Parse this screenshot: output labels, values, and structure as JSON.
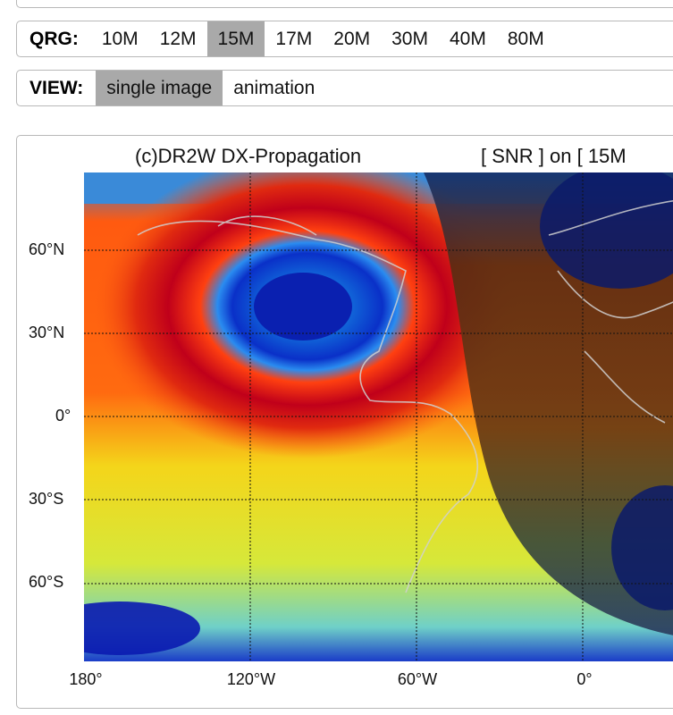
{
  "qrg": {
    "label": "QRG:",
    "bands": [
      "10M",
      "12M",
      "15M",
      "17M",
      "20M",
      "30M",
      "40M",
      "80M"
    ],
    "selected": "15M"
  },
  "view": {
    "label": "VIEW:",
    "options": [
      "single image",
      "animation"
    ],
    "selected": "single image"
  },
  "map": {
    "title_left": "(c)DR2W DX-Propagation",
    "title_right": "[ SNR ] on [ 15M",
    "lat_labels": [
      "60°N",
      "30°N",
      "0°",
      "30°S",
      "60°S"
    ],
    "lon_labels": [
      "180°",
      "120°W",
      "60°W",
      "0°"
    ],
    "colors": {
      "high": "#c8001a",
      "mid": "#f5e21a",
      "low": "#0a1a8c",
      "night_shade": "#3a3f34",
      "coastline": "#cfcfcf"
    }
  }
}
